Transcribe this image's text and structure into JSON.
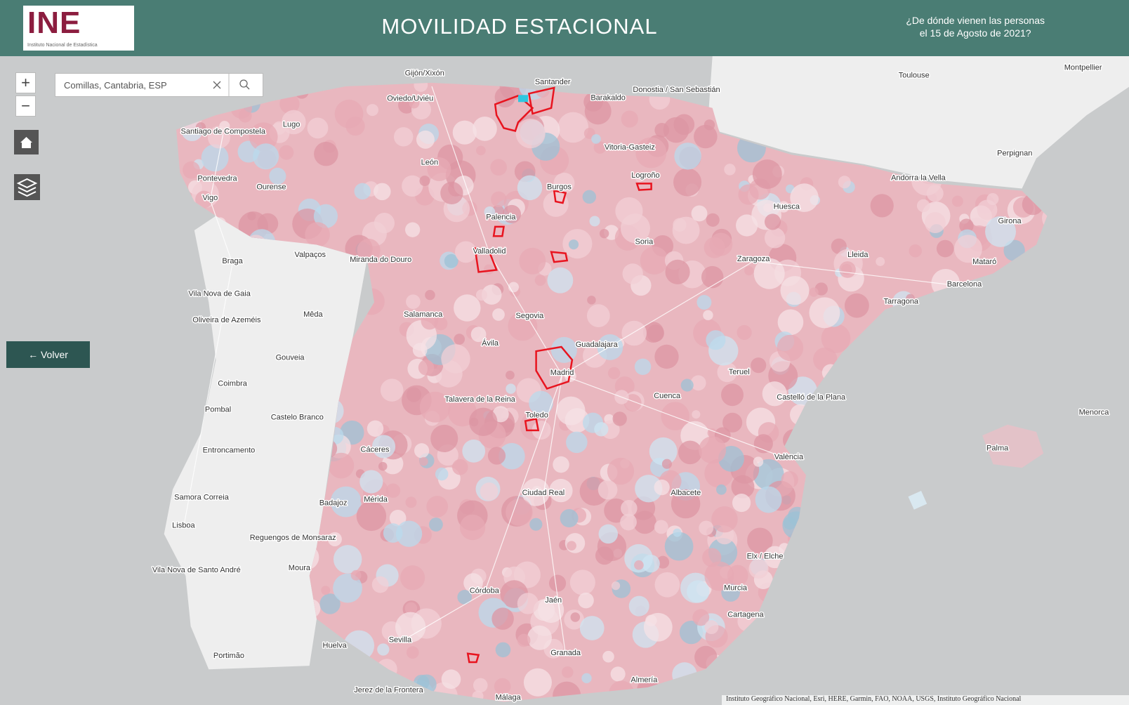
{
  "header": {
    "logo": "INE",
    "logo_subtitle": "Instituto Nacional de Estadística",
    "title": "MOVILIDAD ESTACIONAL",
    "question": [
      "¿De dónde vienen las personas",
      "el 15 de Agosto de 2021?"
    ]
  },
  "search": {
    "value": "Comillas, Cantabria, ESP"
  },
  "controls": {
    "zoom_in": "+",
    "zoom_out": "−"
  },
  "back_button": "← Volver",
  "map": {
    "labels": [
      "Gijón/Xixón",
      "Santander",
      "Oviedo/Uviéu",
      "Barakaldo",
      "Donostia / San Sebastián",
      "Toulouse",
      "Montpellier",
      "Santiago de Compostela",
      "Lugo",
      "Vitoria-Gasteiz",
      "Perpignan",
      "León",
      "Pontevedra",
      "Ourense",
      "Vigo",
      "Logroño",
      "Burgos",
      "Andorra la Vella",
      "Huesca",
      "Palencia",
      "Girona",
      "Soria",
      "Braga",
      "Valpaços",
      "Miranda do Douro",
      "Valladolid",
      "Zaragoza",
      "Lleida",
      "Mataró",
      "Barcelona",
      "Vila Nova de Gaia",
      "Tarragona",
      "Oliveira de Azeméis",
      "Mêda",
      "Salamanca",
      "Segovia",
      "Ávila",
      "Guadalajara",
      "Gouveia",
      "Madrid",
      "Teruel",
      "Coimbra",
      "Talavera de la Reina",
      "Cuenca",
      "Castelló de la Plana",
      "Pombal",
      "Castelo Branco",
      "Toledo",
      "Menorca",
      "Entroncamento",
      "Cáceres",
      "Palma",
      "València",
      "Samora Correia",
      "Badajoz",
      "Mérida",
      "Ciudad Real",
      "Albacete",
      "Lisboa",
      "Reguengos de Monsaraz",
      "Elx / Elche",
      "Vila Nova de Santo André",
      "Moura",
      "Murcia",
      "Córdoba",
      "Jaén",
      "Cartagena",
      "Sevilla",
      "Huelva",
      "Granada",
      "Portimão",
      "Almería",
      "Jerez de la Frontera",
      "Málaga"
    ],
    "attribution": "Instituto Geográfico Nacional, Esri, HERE, Garmin, FAO, NOAA, USGS, Instituto Geográfico Nacional"
  }
}
